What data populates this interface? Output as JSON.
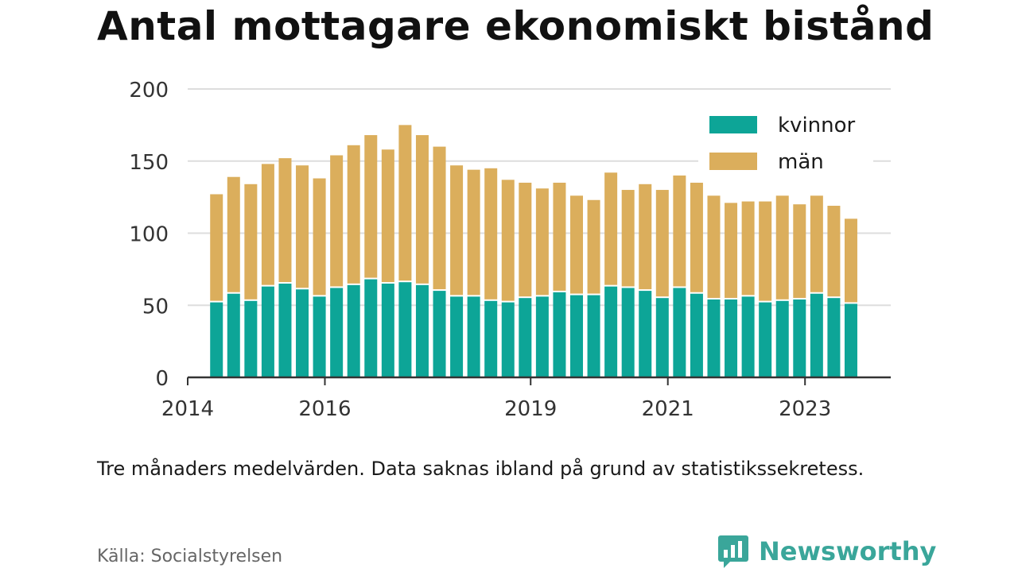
{
  "title": "Antal mottagare ekonomiskt bistånd",
  "note": "Tre månaders medelvärden. Data saknas ibland på grund av statistikssekretess.",
  "source": "Källa: Socialstyrelsen",
  "brand": "Newsworthy",
  "colors": {
    "kvinnor": "#0da597",
    "man": "#dbae5c",
    "grid": "#dddddd",
    "axis": "#333333",
    "brand": "#3aa69a"
  },
  "chart_data": {
    "type": "bar",
    "stacked": true,
    "ylim": [
      0,
      200
    ],
    "yticks": [
      0,
      50,
      100,
      150,
      200
    ],
    "xlim": [
      2014.0,
      2024.25
    ],
    "xticks": [
      2014,
      2016,
      2019,
      2021,
      2023
    ],
    "xtick_labels": [
      "2014",
      "2016",
      "2019",
      "2021",
      "2023"
    ],
    "legend_position": "top-right",
    "grid": true,
    "x": [
      2014.42,
      2014.67,
      2014.92,
      2015.17,
      2015.42,
      2015.67,
      2015.92,
      2016.17,
      2016.42,
      2016.67,
      2016.92,
      2017.17,
      2017.42,
      2017.67,
      2017.92,
      2018.17,
      2018.42,
      2018.67,
      2018.92,
      2019.17,
      2019.42,
      2019.67,
      2019.92,
      2020.17,
      2020.42,
      2020.67,
      2020.92,
      2021.17,
      2021.42,
      2021.67,
      2021.92,
      2022.17,
      2022.42,
      2022.67,
      2022.92,
      2023.17,
      2023.42,
      2023.67
    ],
    "series": [
      {
        "name": "kvinnor",
        "values": [
          52,
          58,
          53,
          63,
          65,
          61,
          56,
          62,
          64,
          68,
          65,
          66,
          64,
          60,
          56,
          56,
          53,
          52,
          55,
          56,
          59,
          57,
          57,
          63,
          62,
          60,
          55,
          62,
          58,
          54,
          54,
          56,
          52,
          53,
          54,
          58,
          55,
          51
        ]
      },
      {
        "name": "män",
        "values": [
          75,
          81,
          81,
          85,
          87,
          86,
          82,
          92,
          97,
          100,
          93,
          109,
          104,
          100,
          91,
          88,
          92,
          85,
          80,
          75,
          76,
          69,
          66,
          79,
          68,
          74,
          75,
          78,
          77,
          72,
          67,
          66,
          70,
          73,
          66,
          68,
          64,
          59
        ]
      }
    ]
  }
}
